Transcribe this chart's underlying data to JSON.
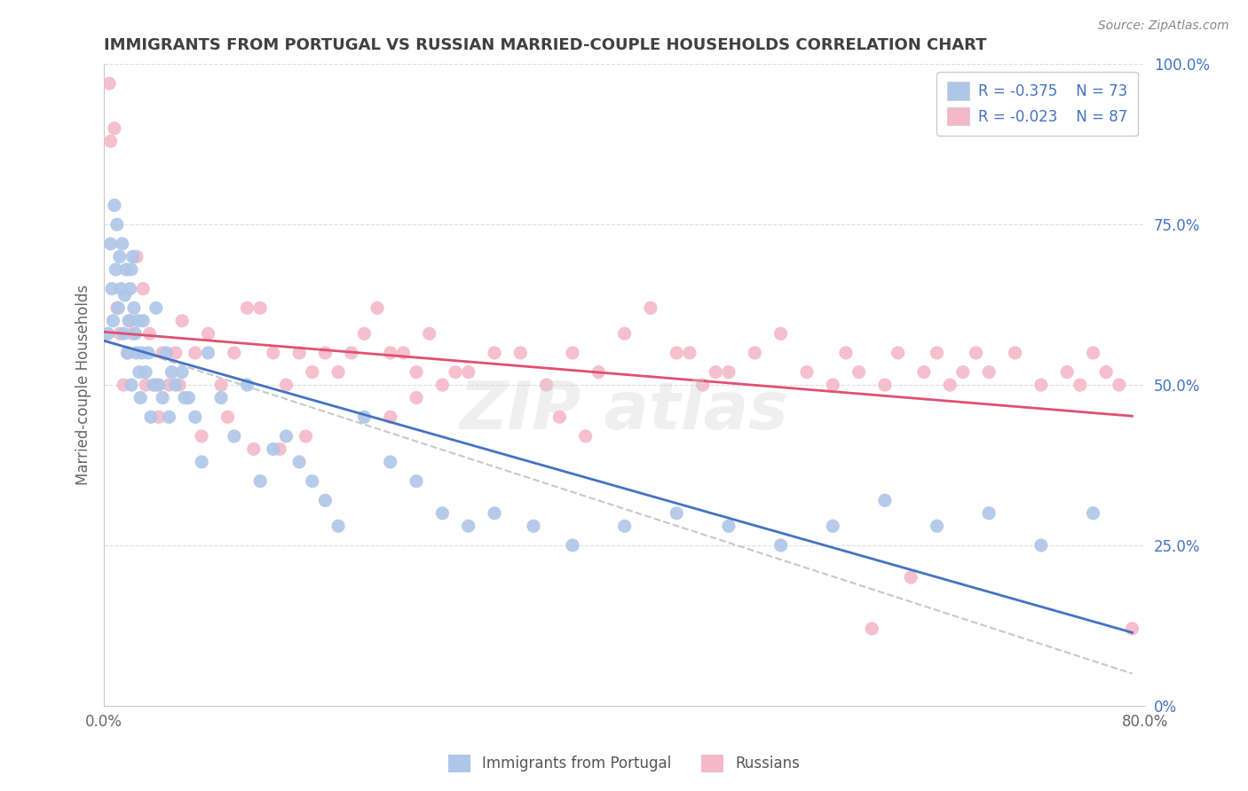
{
  "title": "IMMIGRANTS FROM PORTUGAL VS RUSSIAN MARRIED-COUPLE HOUSEHOLDS CORRELATION CHART",
  "source": "Source: ZipAtlas.com",
  "ylabel": "Married-couple Households",
  "yaxis_values": [
    0,
    25,
    50,
    75,
    100
  ],
  "legend_entries": [
    {
      "color": "#aec6e8",
      "R": "-0.375",
      "N": "73"
    },
    {
      "color": "#f4b8c8",
      "R": "-0.023",
      "N": "87"
    }
  ],
  "R_blue": -0.375,
  "N_blue": 73,
  "R_pink": -0.023,
  "N_pink": 87,
  "background_color": "#ffffff",
  "grid_color": "#dddddd",
  "blue_color": "#aec6e8",
  "pink_color": "#f4b8c8",
  "blue_line_color": "#4472c4",
  "pink_line_color": "#e05070",
  "dash_line_color": "#bbbbbb",
  "legend_text_color": "#4472c4",
  "title_color": "#404040",
  "xmin": 0.0,
  "xmax": 80.0,
  "ymin": 0.0,
  "ymax": 100.0,
  "blue_x": [
    0.3,
    0.5,
    0.6,
    0.7,
    0.8,
    0.9,
    1.0,
    1.1,
    1.2,
    1.3,
    1.4,
    1.5,
    1.6,
    1.7,
    1.8,
    1.9,
    2.0,
    2.1,
    2.2,
    2.3,
    2.4,
    2.5,
    2.6,
    2.7,
    2.8,
    2.9,
    3.0,
    3.2,
    3.4,
    3.6,
    3.8,
    4.0,
    4.2,
    4.5,
    4.8,
    5.0,
    5.5,
    6.0,
    6.5,
    7.0,
    7.5,
    8.0,
    9.0,
    10.0,
    11.0,
    12.0,
    13.0,
    14.0,
    15.0,
    16.0,
    17.0,
    18.0,
    20.0,
    22.0,
    24.0,
    26.0,
    28.0,
    30.0,
    33.0,
    36.0,
    40.0,
    44.0,
    48.0,
    52.0,
    56.0,
    60.0,
    64.0,
    68.0,
    72.0,
    76.0,
    5.2,
    6.2,
    2.1
  ],
  "blue_y": [
    58,
    72,
    65,
    60,
    78,
    68,
    75,
    62,
    70,
    65,
    72,
    58,
    64,
    68,
    55,
    60,
    65,
    50,
    70,
    62,
    58,
    55,
    60,
    52,
    48,
    55,
    60,
    52,
    55,
    45,
    50,
    62,
    50,
    48,
    55,
    45,
    50,
    52,
    48,
    45,
    38,
    55,
    48,
    42,
    50,
    35,
    40,
    42,
    38,
    35,
    32,
    28,
    45,
    38,
    35,
    30,
    28,
    30,
    28,
    25,
    28,
    30,
    28,
    25,
    28,
    32,
    28,
    30,
    25,
    30,
    52,
    48,
    68
  ],
  "pink_x": [
    0.4,
    0.8,
    1.0,
    1.5,
    2.0,
    2.5,
    3.0,
    3.5,
    4.0,
    4.5,
    5.0,
    5.5,
    6.0,
    7.0,
    8.0,
    9.0,
    10.0,
    11.0,
    12.0,
    13.0,
    14.0,
    15.0,
    16.0,
    17.0,
    18.0,
    19.0,
    20.0,
    21.0,
    22.0,
    23.0,
    24.0,
    25.0,
    26.0,
    27.0,
    28.0,
    30.0,
    32.0,
    34.0,
    36.0,
    38.0,
    40.0,
    42.0,
    44.0,
    45.0,
    46.0,
    47.0,
    48.0,
    50.0,
    52.0,
    54.0,
    56.0,
    57.0,
    58.0,
    59.0,
    60.0,
    61.0,
    62.0,
    63.0,
    64.0,
    65.0,
    66.0,
    67.0,
    68.0,
    70.0,
    72.0,
    74.0,
    75.0,
    76.0,
    77.0,
    78.0,
    0.5,
    1.2,
    1.8,
    2.2,
    3.2,
    4.2,
    5.8,
    7.5,
    9.5,
    11.5,
    13.5,
    15.5,
    22.0,
    24.0,
    35.0,
    37.0,
    79.0
  ],
  "pink_y": [
    97,
    90,
    62,
    50,
    60,
    70,
    65,
    58,
    50,
    55,
    50,
    55,
    60,
    55,
    58,
    50,
    55,
    62,
    62,
    55,
    50,
    55,
    52,
    55,
    52,
    55,
    58,
    62,
    55,
    55,
    52,
    58,
    50,
    52,
    52,
    55,
    55,
    50,
    55,
    52,
    58,
    62,
    55,
    55,
    50,
    52,
    52,
    55,
    58,
    52,
    50,
    55,
    52,
    12,
    50,
    55,
    20,
    52,
    55,
    50,
    52,
    55,
    52,
    55,
    50,
    52,
    50,
    55,
    52,
    50,
    88,
    58,
    55,
    58,
    50,
    45,
    50,
    42,
    45,
    40,
    40,
    42,
    45,
    48,
    45,
    42,
    12
  ]
}
